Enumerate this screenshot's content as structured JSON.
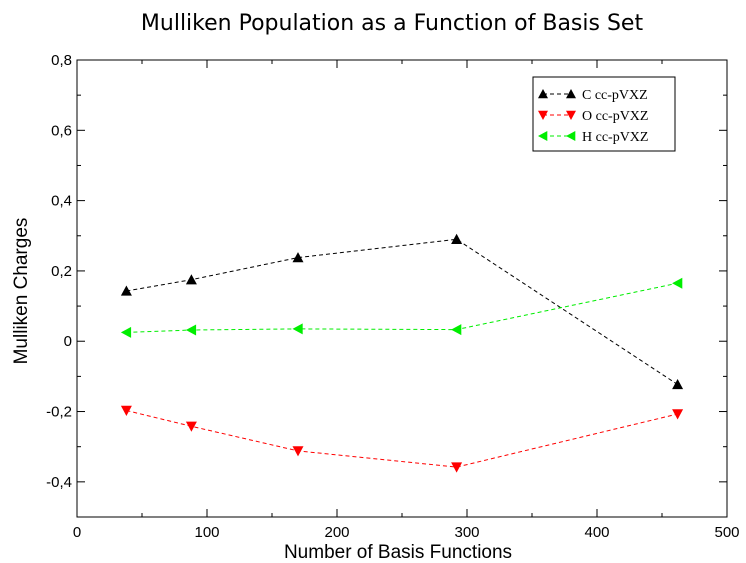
{
  "chart_data": {
    "type": "line",
    "title": "Mulliken Population as a Function of Basis Set",
    "xlabel": "Number of Basis Functions",
    "ylabel": "Mulliken Charges",
    "xlim": [
      0,
      500
    ],
    "ylim": [
      -0.5,
      0.8
    ],
    "xticks": [
      0,
      100,
      200,
      300,
      400,
      500
    ],
    "xtick_labels": [
      "0",
      "100",
      "200",
      "300",
      "400",
      "500"
    ],
    "yticks": [
      -0.4,
      -0.2,
      0,
      0.2,
      0.4,
      0.6,
      0.8
    ],
    "ytick_labels": [
      "-0,4",
      "-0,2",
      "0",
      "0,2",
      "0,4",
      "0,6",
      "0,8"
    ],
    "x": [
      38,
      88,
      170,
      292,
      462
    ],
    "grid": false,
    "legend_position": "top-right",
    "series": [
      {
        "name": "C cc-pVXZ",
        "values": [
          0.143,
          0.175,
          0.238,
          0.29,
          -0.123
        ],
        "color": "#000000",
        "marker": "triangle-up"
      },
      {
        "name": "O cc-pVXZ",
        "values": [
          -0.197,
          -0.242,
          -0.312,
          -0.358,
          -0.207
        ],
        "color": "#ff0000",
        "marker": "triangle-down"
      },
      {
        "name": "H cc-pVXZ",
        "values": [
          0.025,
          0.032,
          0.035,
          0.033,
          0.165
        ],
        "color": "#00ee00",
        "marker": "triangle-left"
      }
    ]
  }
}
